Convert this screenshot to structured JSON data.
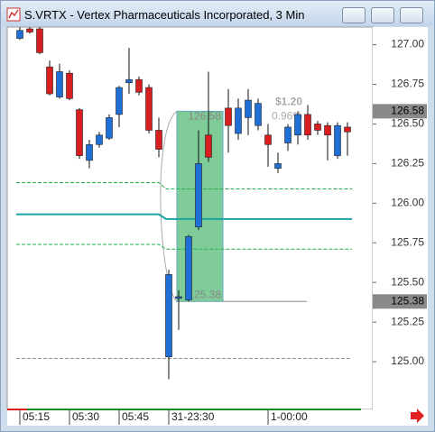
{
  "window_title": "S.VRTX - Vertex Pharmaceuticals Incorporated, 3 Min",
  "chart_data": {
    "type": "candlestick",
    "categories": [
      "05:15",
      null,
      null,
      null,
      null,
      "05:30",
      null,
      null,
      null,
      null,
      "05:45",
      null,
      null,
      null,
      null,
      "31-23:30",
      null,
      null,
      null,
      null,
      null,
      null,
      null,
      null,
      null,
      "1-00:00",
      null,
      null,
      null,
      null,
      null,
      null,
      null,
      null
    ],
    "open": [
      127.04,
      127.1,
      127.1,
      126.86,
      126.67,
      126.82,
      126.59,
      126.27,
      126.37,
      126.41,
      126.56,
      126.76,
      126.78,
      126.73,
      126.46,
      125.03,
      125.4,
      125.39,
      125.85,
      126.43,
      null,
      126.6,
      126.44,
      126.54,
      126.49,
      126.43,
      126.22,
      126.38,
      126.43,
      126.56,
      126.5,
      126.49,
      126.3,
      126.48
    ],
    "high": [
      127.11,
      127.11,
      127.11,
      126.9,
      126.88,
      126.84,
      126.6,
      126.4,
      126.45,
      126.56,
      126.74,
      126.98,
      126.8,
      126.75,
      126.54,
      125.58,
      125.45,
      125.8,
      126.46,
      126.83,
      null,
      126.72,
      126.66,
      126.72,
      126.66,
      126.5,
      126.32,
      126.5,
      126.58,
      126.62,
      126.52,
      126.51,
      126.51,
      126.51
    ],
    "low": [
      127.03,
      127.07,
      126.94,
      126.68,
      126.66,
      126.65,
      126.28,
      126.22,
      126.35,
      126.4,
      126.48,
      126.69,
      126.68,
      126.44,
      126.29,
      124.89,
      125.2,
      125.38,
      125.83,
      126.26,
      null,
      126.32,
      126.4,
      126.43,
      126.46,
      126.23,
      126.19,
      126.33,
      126.37,
      126.4,
      126.43,
      126.27,
      126.28,
      126.3
    ],
    "close": [
      127.09,
      127.08,
      126.95,
      126.69,
      126.83,
      126.66,
      126.3,
      126.37,
      126.43,
      126.54,
      126.73,
      126.78,
      126.7,
      126.46,
      126.34,
      125.55,
      125.41,
      125.79,
      126.25,
      126.29,
      null,
      126.49,
      126.6,
      126.65,
      126.63,
      126.37,
      126.25,
      126.48,
      126.56,
      126.43,
      126.46,
      126.43,
      126.49,
      126.45
    ],
    "up_color": "#1f6fd6",
    "down_color": "#d81e1e",
    "ylim": [
      124.71,
      127.1
    ],
    "yticks": [
      {
        "value": 125,
        "label": "125.00"
      },
      {
        "value": 125.25,
        "label": "125.25"
      },
      {
        "value": 125.5,
        "label": "125.50"
      },
      {
        "value": 125.75,
        "label": "125.75"
      },
      {
        "value": 126,
        "label": "126.00"
      },
      {
        "value": 126.25,
        "label": "126.25"
      },
      {
        "value": 126.5,
        "label": "126.50"
      },
      {
        "value": 126.75,
        "label": "126.75"
      },
      {
        "value": 127,
        "label": "127.00"
      }
    ],
    "levels": [
      {
        "left": 126.13,
        "right": 126.09,
        "color": "#22b14c",
        "style": "dashed"
      },
      {
        "left": 125.93,
        "right": 125.9,
        "color": "#1aa3a3",
        "style": "solid"
      },
      {
        "left": 125.74,
        "right": 125.71,
        "color": "#22b14c",
        "style": "dashed"
      },
      {
        "left": 125.02,
        "right": 125.02,
        "color": "#999999",
        "style": "dashed"
      }
    ],
    "price_tags": [
      126.58,
      125.38
    ],
    "measure": {
      "high": 126.58,
      "low": 125.38,
      "change": "$1.20",
      "percent": "0.96%",
      "color": "#7fcc99"
    }
  }
}
